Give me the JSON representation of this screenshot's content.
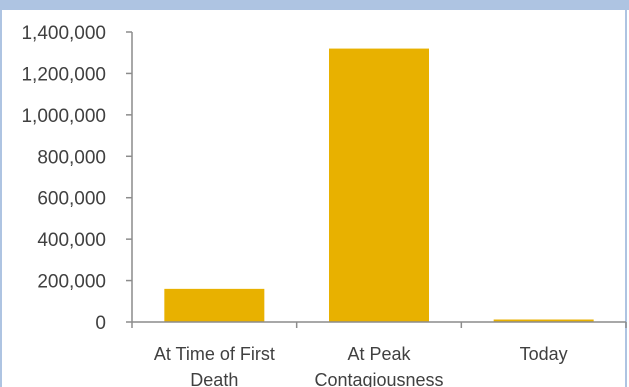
{
  "chart_data": {
    "type": "bar",
    "categories": [
      [
        "At Time of First",
        "Death"
      ],
      [
        "At Peak",
        "Contagiousness"
      ],
      [
        "Today"
      ]
    ],
    "values": [
      160000,
      1320000,
      12000
    ],
    "ylim": [
      0,
      1400000
    ],
    "yticks": [
      0,
      200000,
      400000,
      600000,
      800000,
      1000000,
      1200000,
      1400000
    ],
    "ytick_labels": [
      "0",
      "200,000",
      "400,000",
      "600,000",
      "800,000",
      "1,000,000",
      "1,200,000",
      "1,400,000"
    ],
    "bar_color": "#e8b100",
    "axis_color": "#8c8c8c",
    "grid": false,
    "title": "",
    "xlabel": "",
    "ylabel": ""
  }
}
